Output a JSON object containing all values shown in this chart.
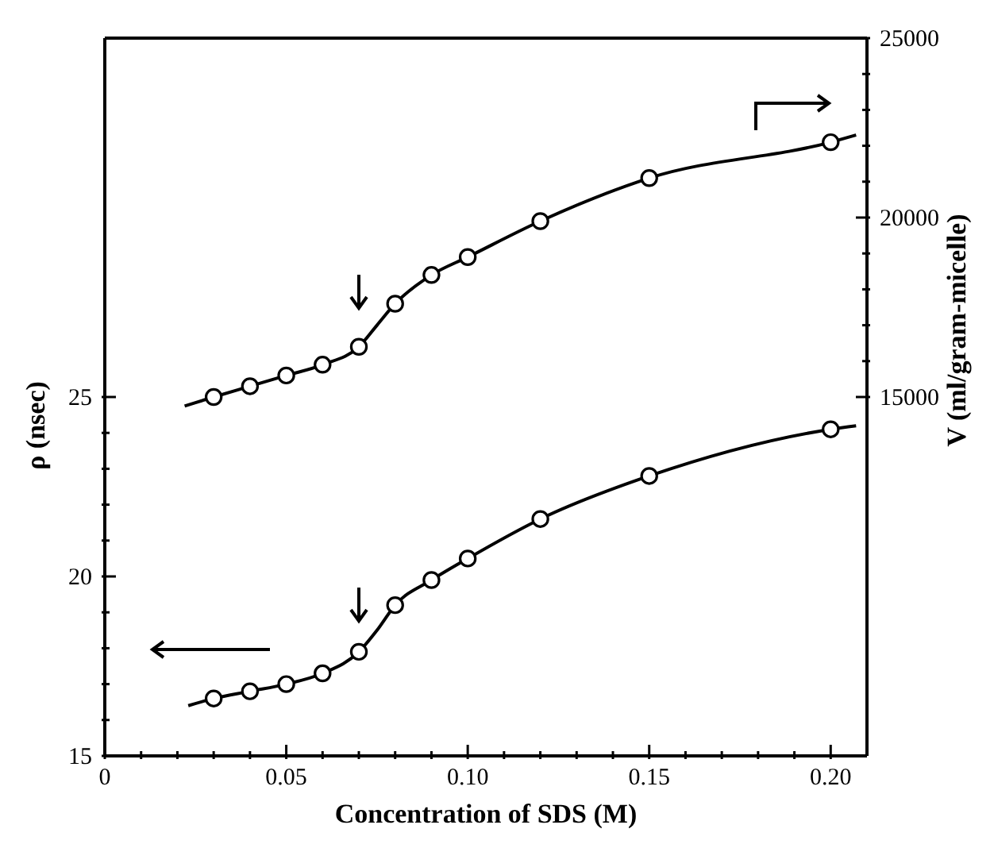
{
  "chart_data": {
    "type": "scatter",
    "xlabel": "Concentration of SDS (M)",
    "ylabel": "ρ (nsec)",
    "y2label": "V (ml/gram-micelle)",
    "xlim": [
      0,
      0.21
    ],
    "xticks": [
      0,
      {
        "value": 0.01,
        "label": null
      },
      {
        "value": 0.02,
        "label": null
      },
      {
        "value": 0.03,
        "label": null
      },
      {
        "value": 0.04,
        "label": null
      },
      0.05,
      {
        "value": 0.06,
        "label": null
      },
      {
        "value": 0.07,
        "label": null
      },
      {
        "value": 0.08,
        "label": null
      },
      {
        "value": 0.09,
        "label": null
      },
      {
        "value": 0.1,
        "label": "0.10"
      },
      {
        "value": 0.11,
        "label": null
      },
      {
        "value": 0.12,
        "label": null
      },
      {
        "value": 0.13,
        "label": null
      },
      {
        "value": 0.14,
        "label": null
      },
      0.15,
      {
        "value": 0.16,
        "label": null
      },
      {
        "value": 0.17,
        "label": null
      },
      {
        "value": 0.18,
        "label": null
      },
      {
        "value": 0.19,
        "label": null
      },
      {
        "value": 0.2,
        "label": "0.20"
      }
    ],
    "ylim": [
      15,
      35
    ],
    "yticks": [
      15,
      {
        "value": 16,
        "label": null
      },
      {
        "value": 17,
        "label": null
      },
      {
        "value": 18,
        "label": null
      },
      {
        "value": 19,
        "label": null
      },
      20,
      {
        "value": 21,
        "label": null
      },
      {
        "value": 22,
        "label": null
      },
      {
        "value": 23,
        "label": null
      },
      {
        "value": 24,
        "label": null
      },
      25
    ],
    "y2lim": [
      5000,
      25000
    ],
    "y2ticks": [
      15000,
      {
        "value": 16000,
        "label": null
      },
      {
        "value": 17000,
        "label": null
      },
      {
        "value": 18000,
        "label": null
      },
      {
        "value": 19000,
        "label": null
      },
      20000,
      {
        "value": 21000,
        "label": null
      },
      {
        "value": 22000,
        "label": null
      },
      {
        "value": 23000,
        "label": null
      },
      {
        "value": 24000,
        "label": null
      },
      25000
    ],
    "grid": false,
    "legend": false,
    "series": [
      {
        "color": "#000000",
        "marker": "circle",
        "x": [
          0.03,
          0.04,
          0.05,
          0.06,
          0.07,
          0.08,
          0.09,
          0.1,
          0.12,
          0.15,
          0.2
        ],
        "values": [
          16.6,
          16.8,
          17.0,
          17.3,
          17.9,
          19.2,
          19.9,
          20.5,
          21.6,
          22.8,
          24.1
        ]
      },
      {
        "type": "line",
        "color": "#000000",
        "marker": "none",
        "line_style": "solid",
        "x": [
          0.023,
          0.03,
          0.04,
          0.05,
          0.06,
          0.07,
          0.075,
          0.08,
          0.09,
          0.1,
          0.12,
          0.15,
          0.2,
          0.207
        ],
        "values": [
          16.4,
          16.6,
          16.8,
          17.0,
          17.3,
          17.9,
          18.5,
          19.2,
          19.9,
          20.5,
          21.6,
          22.8,
          24.1,
          24.2
        ]
      },
      {
        "axis": "y2",
        "color": "#000000",
        "marker": "circle",
        "x": [
          0.03,
          0.04,
          0.05,
          0.06,
          0.07,
          0.08,
          0.09,
          0.1,
          0.12,
          0.15,
          0.2
        ],
        "values": [
          15000,
          15300,
          15600,
          15900,
          16400,
          17600,
          18400,
          18900,
          19900,
          21100,
          22100
        ]
      },
      {
        "type": "line",
        "axis": "y2",
        "color": "#000000",
        "marker": "none",
        "line_style": "solid",
        "x": [
          0.022,
          0.03,
          0.04,
          0.05,
          0.06,
          0.07,
          0.075,
          0.08,
          0.09,
          0.1,
          0.12,
          0.15,
          0.2,
          0.207
        ],
        "values": [
          14750,
          15000,
          15300,
          15600,
          15900,
          16400,
          17000,
          17600,
          18400,
          18900,
          19900,
          21100,
          22100,
          22300
        ]
      }
    ]
  }
}
